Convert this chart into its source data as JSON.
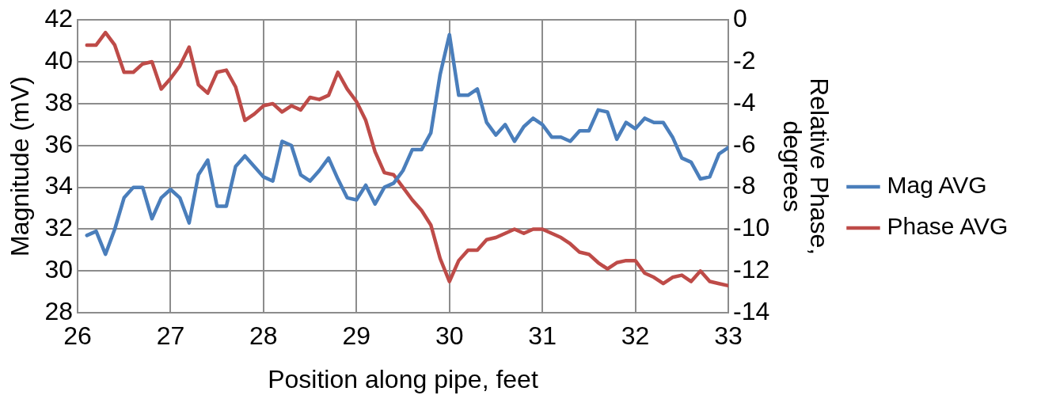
{
  "chart_data": {
    "type": "line",
    "xlabel": "Position along pipe, feet",
    "ylabel": "Magnitude (mV)",
    "y2label": "Relative Phase, degrees",
    "x": [
      26.1,
      26.2,
      26.3,
      26.4,
      26.5,
      26.6,
      26.7,
      26.8,
      26.9,
      27.0,
      27.1,
      27.2,
      27.3,
      27.4,
      27.5,
      27.6,
      27.7,
      27.8,
      27.9,
      28.0,
      28.1,
      28.2,
      28.3,
      28.4,
      28.5,
      28.6,
      28.7,
      28.8,
      28.9,
      29.0,
      29.1,
      29.2,
      29.3,
      29.4,
      29.5,
      29.6,
      29.7,
      29.8,
      29.9,
      30.0,
      30.1,
      30.2,
      30.3,
      30.4,
      30.5,
      30.6,
      30.7,
      30.8,
      30.9,
      31.0,
      31.1,
      31.2,
      31.3,
      31.4,
      31.5,
      31.6,
      31.7,
      31.8,
      31.9,
      32.0,
      32.1,
      32.2,
      32.3,
      32.4,
      32.5,
      32.6,
      32.7,
      32.8,
      32.9,
      33.0
    ],
    "series": [
      {
        "name": "Mag AVG",
        "color": "#4a7ebb",
        "values": [
          31.7,
          31.9,
          30.8,
          32.0,
          33.5,
          34.0,
          34.0,
          32.5,
          33.5,
          33.9,
          33.5,
          32.3,
          34.6,
          35.3,
          33.1,
          33.1,
          35.0,
          35.5,
          35.0,
          34.5,
          34.3,
          36.2,
          36.0,
          34.6,
          34.3,
          34.8,
          35.4,
          34.4,
          33.5,
          33.4,
          34.1,
          33.2,
          34.0,
          34.2,
          34.8,
          35.8,
          35.8,
          36.6,
          39.4,
          41.3,
          38.4,
          38.4,
          38.7,
          37.1,
          36.5,
          37.0,
          36.2,
          36.9,
          37.3,
          37.0,
          36.4,
          36.4,
          36.2,
          36.7,
          36.7,
          37.7,
          37.6,
          36.3,
          37.1,
          36.8,
          37.3,
          37.1,
          37.1,
          36.4,
          35.4,
          35.2,
          34.4,
          34.5,
          35.6,
          35.9
        ]
      },
      {
        "name": "Phase AVG",
        "color": "#be4b48",
        "axis": "y2",
        "values": [
          -1.2,
          -1.2,
          -0.6,
          -1.2,
          -2.5,
          -2.5,
          -2.1,
          -2.0,
          -3.3,
          -2.8,
          -2.2,
          -1.3,
          -3.1,
          -3.5,
          -2.5,
          -2.4,
          -3.2,
          -4.8,
          -4.5,
          -4.1,
          -4.0,
          -4.4,
          -4.1,
          -4.3,
          -3.7,
          -3.8,
          -3.6,
          -2.5,
          -3.3,
          -3.9,
          -4.8,
          -6.3,
          -7.3,
          -7.4,
          -8.0,
          -8.6,
          -9.1,
          -9.8,
          -11.4,
          -12.5,
          -11.5,
          -11.0,
          -11.0,
          -10.5,
          -10.4,
          -10.2,
          -10.0,
          -10.2,
          -10.0,
          -10.0,
          -10.2,
          -10.4,
          -10.7,
          -11.1,
          -11.2,
          -11.6,
          -11.9,
          -11.6,
          -11.5,
          -11.5,
          -12.1,
          -12.3,
          -12.6,
          -12.3,
          -12.2,
          -12.5,
          -12.0,
          -12.5,
          -12.6,
          -12.7
        ]
      }
    ],
    "xlim": [
      26,
      33
    ],
    "xticks": [
      26,
      27,
      28,
      29,
      30,
      31,
      32,
      33
    ],
    "ylim": [
      28,
      42
    ],
    "yticks": [
      28,
      30,
      32,
      34,
      36,
      38,
      40,
      42
    ],
    "y2lim": [
      -14,
      0
    ],
    "y2ticks": [
      -14,
      -12,
      -10,
      -8,
      -6,
      -4,
      -2,
      0
    ],
    "grid": true,
    "legend": "right",
    "marker": "none",
    "line_style": "solid"
  }
}
